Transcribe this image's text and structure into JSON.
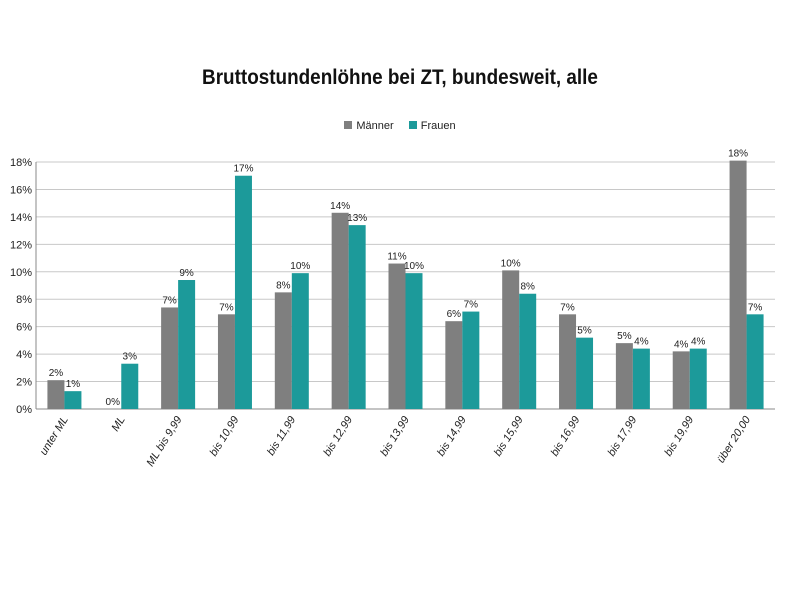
{
  "chart_data": {
    "type": "bar",
    "title": "Bruttostundenlöhne bei ZT, bundesweit, alle",
    "categories": [
      "unter ML",
      "ML",
      "ML bis 9,99",
      "bis 10,99",
      "bis 11,99",
      "bis 12,99",
      "bis 13,99",
      "bis 14,99",
      "bis 15,99",
      "bis 16,99",
      "bis 17,99",
      "bis 19,99",
      "über 20,00"
    ],
    "series": [
      {
        "name": "Männer",
        "color": "#7f7f7f",
        "values": [
          2.1,
          0,
          7.4,
          6.9,
          8.5,
          14.3,
          10.6,
          6.4,
          10.1,
          6.9,
          4.8,
          4.2,
          18.1
        ],
        "labels": [
          "2%",
          "0%",
          "7%",
          "7%",
          "8%",
          "14%",
          "11%",
          "6%",
          "10%",
          "7%",
          "5%",
          "4%",
          "18%"
        ]
      },
      {
        "name": "Frauen",
        "color": "#1c9a9a",
        "values": [
          1.3,
          3.3,
          9.4,
          17.0,
          9.9,
          13.4,
          9.9,
          7.1,
          8.4,
          5.2,
          4.4,
          4.4,
          6.9
        ],
        "labels": [
          "1%",
          "3%",
          "9%",
          "17%",
          "10%",
          "13%",
          "10%",
          "7%",
          "8%",
          "5%",
          "4%",
          "4%",
          "7%"
        ]
      }
    ],
    "y_ticks": [
      "0%",
      "2%",
      "4%",
      "6%",
      "8%",
      "10%",
      "12%",
      "14%",
      "16%",
      "18%"
    ],
    "ylim": [
      0,
      18
    ],
    "grid": true,
    "legend_position": "top-center"
  }
}
